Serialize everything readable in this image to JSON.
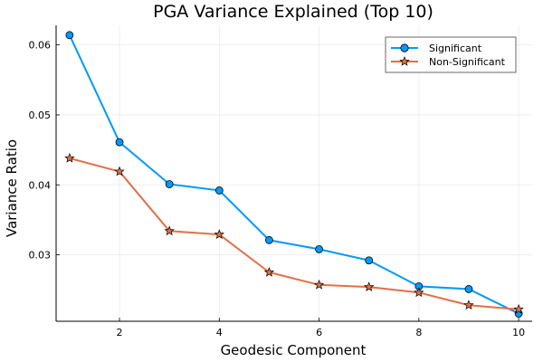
{
  "chart_data": {
    "type": "line",
    "title": "PGA Variance Explained (Top 10)",
    "xlabel": "Geodesic Component",
    "ylabel": "Variance Ratio",
    "x": [
      1,
      2,
      3,
      4,
      5,
      6,
      7,
      8,
      9,
      10
    ],
    "xlim": [
      0.73,
      10.27
    ],
    "ylim": [
      0.0205,
      0.0628
    ],
    "xticks": [
      2,
      4,
      6,
      8,
      10
    ],
    "yticks": [
      0.03,
      0.04,
      0.05,
      0.06
    ],
    "ytick_labels": [
      "0.03",
      "0.04",
      "0.05",
      "0.06"
    ],
    "grid": true,
    "legend_position": "top-right",
    "series": [
      {
        "name": "Significant",
        "color": "#009AFA",
        "marker": "circle",
        "values": [
          0.0614,
          0.0461,
          0.0401,
          0.0392,
          0.0321,
          0.0308,
          0.0292,
          0.0255,
          0.0251,
          0.0216
        ]
      },
      {
        "name": "Non-Significant",
        "color": "#E26F46",
        "marker": "star",
        "values": [
          0.0438,
          0.0419,
          0.0334,
          0.0329,
          0.0275,
          0.0257,
          0.0254,
          0.0246,
          0.0228,
          0.0222
        ]
      }
    ]
  }
}
